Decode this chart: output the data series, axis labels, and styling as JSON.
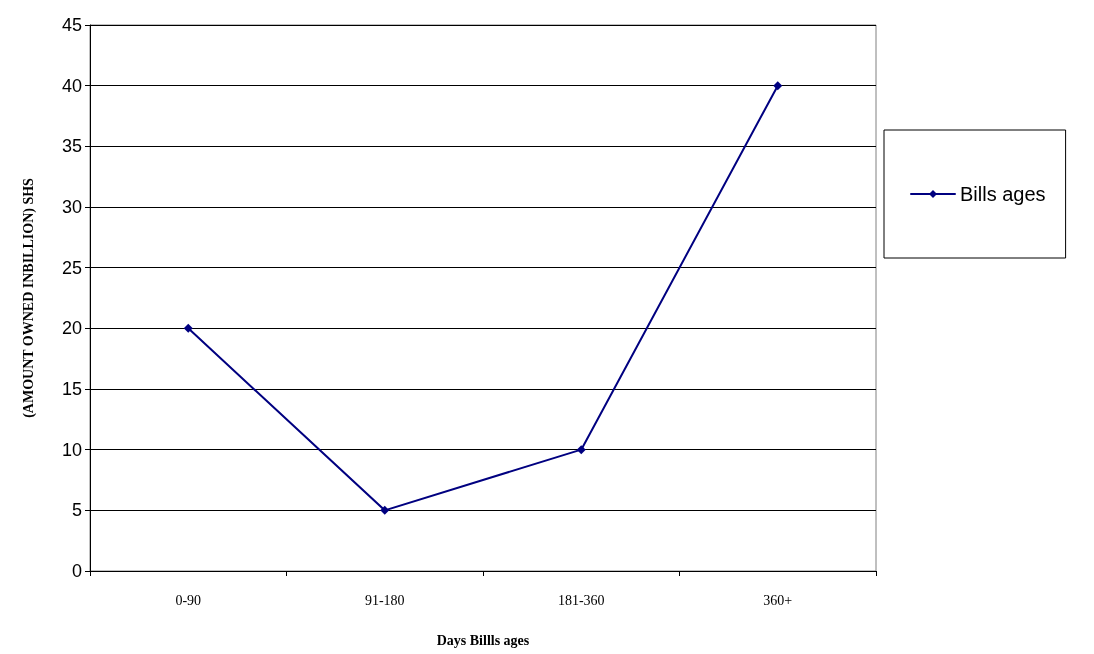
{
  "chart_data": {
    "type": "line",
    "xlabel": "Days Billls ages",
    "ylabel": "(AMOUNT OWNED INBILLION) SHS",
    "categories": [
      "0-90",
      "91-180",
      "181-360",
      "360+"
    ],
    "series": [
      {
        "name": "Bills ages",
        "color": "#000080",
        "values": [
          20,
          5,
          10,
          40
        ]
      }
    ],
    "ylim": [
      0,
      45
    ],
    "yticks": [
      0,
      5,
      10,
      15,
      20,
      25,
      30,
      35,
      40,
      45
    ],
    "grid": "y",
    "legend": "right",
    "marker": "diamond",
    "line_style": "solid"
  }
}
